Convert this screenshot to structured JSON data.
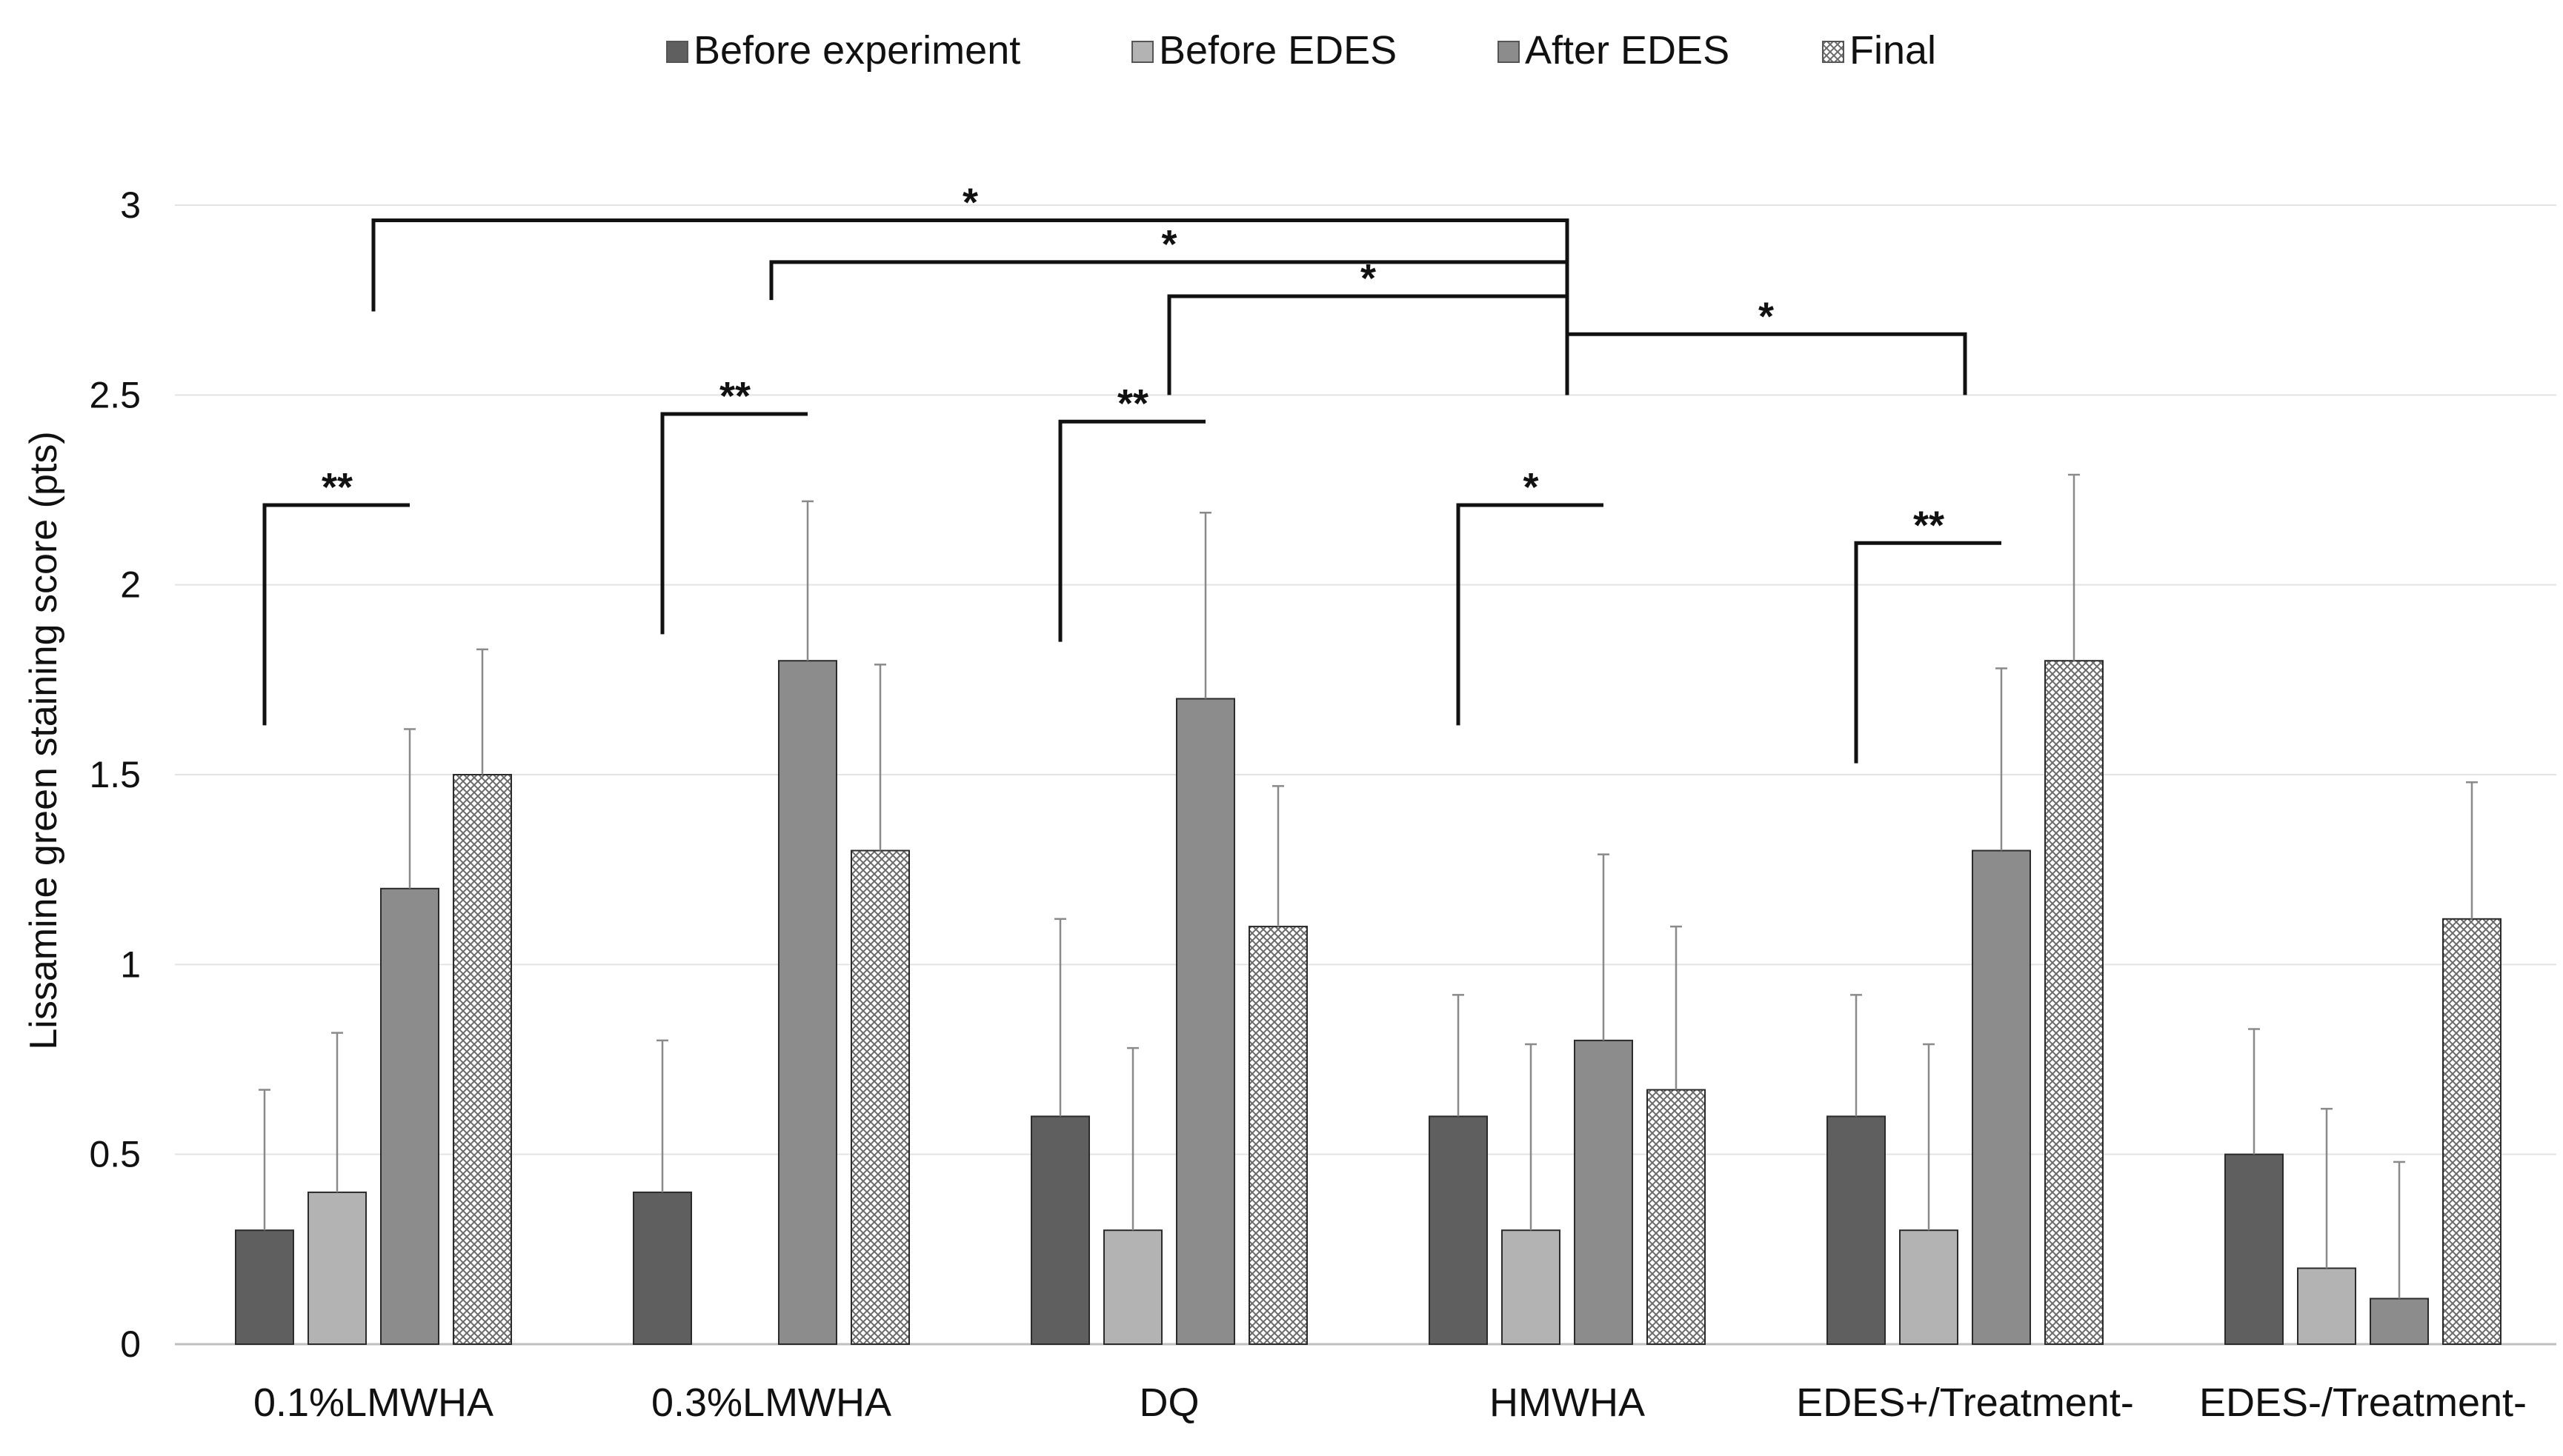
{
  "chart_data": {
    "type": "bar",
    "title": "",
    "xlabel": "",
    "ylabel": "Lissamine green staining score (pts)",
    "ylim": [
      0,
      3
    ],
    "yticks": [
      "0",
      "0.5",
      "1",
      "1.5",
      "2",
      "2.5",
      "3"
    ],
    "ytick_values": [
      0,
      0.5,
      1,
      1.5,
      2,
      2.5,
      3
    ],
    "grid": true,
    "legend_position": "top-center",
    "categories": [
      "0.1%LMWHA",
      "0.3%LMWHA",
      "DQ",
      "HMWHA",
      "EDES+/Treatment-",
      "EDES-/Treatment-"
    ],
    "series": [
      {
        "name": "Before experiment",
        "color": "#5f5f5f",
        "pattern": "solid",
        "values": [
          0.3,
          0.4,
          0.6,
          0.6,
          0.6,
          0.5
        ],
        "errors": [
          0.37,
          0.4,
          0.52,
          0.32,
          0.32,
          0.33
        ]
      },
      {
        "name": "Before EDES",
        "color": "#b3b3b3",
        "pattern": "solid",
        "values": [
          0.4,
          0.0,
          0.3,
          0.3,
          0.3,
          0.2
        ],
        "errors": [
          0.42,
          0.0,
          0.48,
          0.49,
          0.49,
          0.42
        ]
      },
      {
        "name": "After EDES",
        "color": "#8c8c8c",
        "pattern": "solid",
        "values": [
          1.2,
          1.8,
          1.7,
          0.8,
          1.3,
          0.12
        ],
        "errors": [
          0.42,
          0.42,
          0.49,
          0.49,
          0.48,
          0.36
        ]
      },
      {
        "name": "Final",
        "color": "#ffffff",
        "pattern": "crosshatch",
        "values": [
          1.5,
          1.3,
          1.1,
          0.67,
          1.8,
          1.12
        ],
        "errors": [
          0.33,
          0.49,
          0.37,
          0.43,
          0.49,
          0.36
        ]
      }
    ],
    "annotations": [
      {
        "type": "pair",
        "category": 0,
        "from_series": 0,
        "to_series": 2,
        "label": "**",
        "y_data": 2.21,
        "left_drop": 0.58
      },
      {
        "type": "pair",
        "category": 1,
        "from_series": 0,
        "to_series": 2,
        "label": "**",
        "y_data": 2.45,
        "left_drop": 0.58
      },
      {
        "type": "pair",
        "category": 2,
        "from_series": 0,
        "to_series": 2,
        "label": "**",
        "y_data": 2.43,
        "left_drop": 0.58
      },
      {
        "type": "pair",
        "category": 3,
        "from_series": 0,
        "to_series": 2,
        "label": "*",
        "y_data": 2.21,
        "left_drop": 0.58
      },
      {
        "type": "pair",
        "category": 4,
        "from_series": 0,
        "to_series": 2,
        "label": "**",
        "y_data": 2.11,
        "left_drop": 0.58
      },
      {
        "type": "cross",
        "from_category": 0,
        "to_category": 3,
        "label": "*",
        "y_data": 2.96,
        "left_end": 2.72,
        "right_end": 2.5
      },
      {
        "type": "cross",
        "from_category": 1,
        "to_category": 3,
        "label": "*",
        "y_data": 2.85,
        "left_end": 2.75,
        "right_end": 2.5
      },
      {
        "type": "cross",
        "from_category": 2,
        "to_category": 3,
        "label": "*",
        "y_data": 2.76,
        "left_end": 2.5,
        "right_end": 2.5
      },
      {
        "type": "cross",
        "from_category": 3,
        "to_category": 4,
        "label": "*",
        "y_data": 2.66,
        "left_end": 2.5,
        "right_end": 2.5
      }
    ]
  }
}
